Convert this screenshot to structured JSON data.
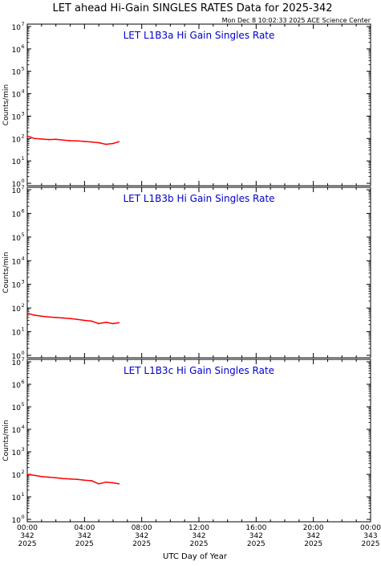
{
  "header": {
    "title": "LET ahead Hi-Gain SINGLES RATES Data for 2025-342",
    "timestamp": "Mon Dec  8 10:02:33 2025 ACE Science Center"
  },
  "chart_data": [
    {
      "type": "line",
      "subtitle": "LET L1B3a Hi Gain Singles Rate",
      "ylabel": "Counts/min",
      "yscale": "log",
      "ylim": [
        1,
        10000000
      ],
      "xlim": [
        0,
        24
      ],
      "series": [
        {
          "color": "#ff0000",
          "x": [
            0.0,
            0.5,
            1.0,
            1.5,
            2.0,
            2.5,
            3.0,
            3.5,
            4.0,
            4.5,
            5.0,
            5.5,
            6.0,
            6.4
          ],
          "y": [
            130,
            100,
            95,
            90,
            92,
            85,
            80,
            78,
            74,
            70,
            65,
            55,
            60,
            72
          ]
        }
      ]
    },
    {
      "type": "line",
      "subtitle": "LET L1B3b Hi Gain Singles Rate",
      "ylabel": "Counts/min",
      "yscale": "log",
      "ylim": [
        1,
        10000000
      ],
      "xlim": [
        0,
        24
      ],
      "series": [
        {
          "color": "#ff0000",
          "x": [
            0.0,
            0.5,
            1.0,
            1.5,
            2.0,
            2.5,
            3.0,
            3.5,
            4.0,
            4.5,
            5.0,
            5.5,
            6.0,
            6.4
          ],
          "y": [
            60,
            50,
            45,
            42,
            40,
            38,
            36,
            33,
            30,
            28,
            22,
            25,
            22,
            24
          ]
        }
      ]
    },
    {
      "type": "line",
      "subtitle": "LET L1B3c Hi Gain Singles Rate",
      "ylabel": "Counts/min",
      "yscale": "log",
      "ylim": [
        1,
        10000000
      ],
      "xlim": [
        0,
        24
      ],
      "series": [
        {
          "color": "#ff0000",
          "x": [
            0.0,
            0.5,
            1.0,
            1.5,
            2.0,
            2.5,
            3.0,
            3.5,
            4.0,
            4.5,
            5.0,
            5.5,
            6.0,
            6.4
          ],
          "y": [
            100,
            90,
            80,
            75,
            70,
            65,
            62,
            60,
            55,
            52,
            38,
            45,
            42,
            38
          ]
        }
      ]
    }
  ],
  "x_axis": {
    "xlabel": "UTC Day of Year",
    "ticks": [
      {
        "value": 0,
        "time": "00:00",
        "doy": "342",
        "year": "2025"
      },
      {
        "value": 4,
        "time": "04:00",
        "doy": "342",
        "year": "2025"
      },
      {
        "value": 8,
        "time": "08:00",
        "doy": "342",
        "year": "2025"
      },
      {
        "value": 12,
        "time": "12:00",
        "doy": "342",
        "year": "2025"
      },
      {
        "value": 16,
        "time": "16:00",
        "doy": "342",
        "year": "2025"
      },
      {
        "value": 20,
        "time": "20:00",
        "doy": "342",
        "year": "2025"
      },
      {
        "value": 24,
        "time": "00:00",
        "doy": "343",
        "year": "2025"
      }
    ]
  },
  "y_axis": {
    "tick_labels": [
      "10",
      "10",
      "10",
      "10",
      "10",
      "10",
      "10",
      "10"
    ],
    "tick_exponents": [
      "0",
      "1",
      "2",
      "3",
      "4",
      "5",
      "6",
      "7"
    ]
  }
}
